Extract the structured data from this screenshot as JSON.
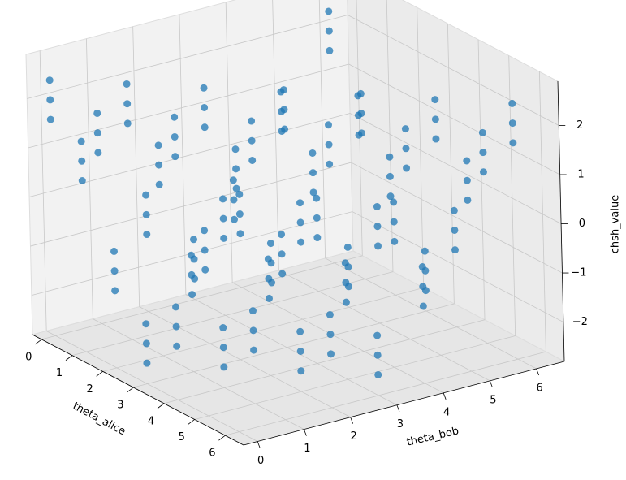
{
  "chart_data": {
    "type": "scatter3d",
    "xlabel": "theta_alice",
    "ylabel": "theta_bob",
    "zlabel": "chsh_value",
    "x": [
      0,
      1,
      2,
      3,
      4,
      5,
      6
    ],
    "y": [
      0,
      1,
      2,
      3,
      4,
      5,
      6
    ],
    "values": [
      [
        [
          1.6,
          2,
          2.4
        ],
        [
          0.68,
          1.08,
          1.48
        ],
        [
          -1.23,
          -0.83,
          -0.43
        ],
        [
          -2.38,
          -1.98,
          -1.58
        ],
        [
          -1.71,
          -1.31,
          -0.91
        ],
        [
          0.17,
          0.57,
          0.97
        ],
        [
          1.52,
          1.92,
          2.32
        ]
      ],
      [
        [
          0.68,
          1.08,
          1.48
        ],
        [
          1.6,
          2,
          2.4
        ],
        [
          0.68,
          1.08,
          1.48
        ],
        [
          -1.23,
          -0.83,
          -0.43
        ],
        [
          -2.38,
          -1.98,
          -1.58
        ],
        [
          -1.71,
          -1.31,
          -0.91
        ],
        [
          0.17,
          0.57,
          0.97
        ]
      ],
      [
        [
          -1.23,
          -0.83,
          -0.43
        ],
        [
          0.68,
          1.08,
          1.48
        ],
        [
          1.6,
          2,
          2.4
        ],
        [
          0.68,
          1.08,
          1.48
        ],
        [
          -1.23,
          -0.83,
          -0.43
        ],
        [
          -2.38,
          -1.98,
          -1.58
        ],
        [
          -1.71,
          -1.31,
          -0.91
        ]
      ],
      [
        [
          -2.38,
          -1.98,
          -1.58
        ],
        [
          -1.23,
          -0.83,
          -0.43
        ],
        [
          0.68,
          1.08,
          1.48
        ],
        [
          1.6,
          2,
          2.4
        ],
        [
          0.68,
          1.08,
          1.48
        ],
        [
          -1.23,
          -0.83,
          -0.43
        ],
        [
          -2.38,
          -1.98,
          -1.58
        ]
      ],
      [
        [
          -1.71,
          -1.31,
          -0.91
        ],
        [
          -2.38,
          -1.98,
          -1.58
        ],
        [
          -1.23,
          -0.83,
          -0.43
        ],
        [
          0.68,
          1.08,
          1.48
        ],
        [
          1.6,
          2,
          2.4
        ],
        [
          0.68,
          1.08,
          1.48
        ],
        [
          -1.23,
          -0.83,
          -0.43
        ]
      ],
      [
        [
          0.17,
          0.57,
          0.97
        ],
        [
          -1.71,
          -1.31,
          -0.91
        ],
        [
          -2.38,
          -1.98,
          -1.58
        ],
        [
          -1.23,
          -0.83,
          -0.43
        ],
        [
          0.68,
          1.08,
          1.48
        ],
        [
          1.6,
          2,
          2.4
        ],
        [
          0.68,
          1.08,
          1.48
        ]
      ],
      [
        [
          1.52,
          1.92,
          2.32
        ],
        [
          0.17,
          0.57,
          0.97
        ],
        [
          -1.71,
          -1.31,
          -0.91
        ],
        [
          -2.38,
          -1.98,
          -1.58
        ],
        [
          -1.23,
          -0.83,
          -0.43
        ],
        [
          0.68,
          1.08,
          1.48
        ],
        [
          1.6,
          2,
          2.4
        ]
      ]
    ],
    "color": "#1f77b4",
    "xlim": [
      -0.3,
      6.6
    ],
    "ylim": [
      -0.3,
      6.6
    ],
    "zlim": [
      -2.8,
      2.9
    ],
    "xticks": [
      0,
      1,
      2,
      3,
      4,
      5,
      6
    ],
    "yticks": [
      0,
      1,
      2,
      3,
      4,
      5,
      6
    ],
    "zticks": [
      {
        "value": -2,
        "label": "−2"
      },
      {
        "value": -1,
        "label": "−1"
      },
      0,
      1,
      2
    ],
    "grid": true
  }
}
